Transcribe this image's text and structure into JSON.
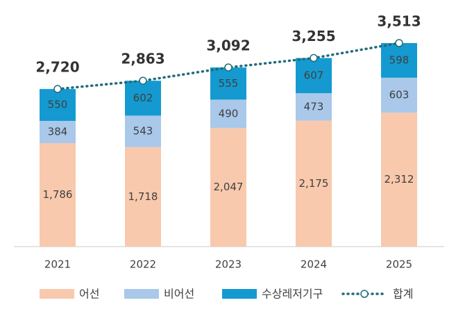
{
  "chart_data": {
    "type": "bar",
    "stacked": true,
    "categories": [
      "2021",
      "2022",
      "2023",
      "2024",
      "2025"
    ],
    "series": [
      {
        "name": "어선",
        "color": "#f8c9ad",
        "values": [
          1786,
          1718,
          2047,
          2175,
          2312
        ],
        "value_labels": [
          "1,786",
          "1,718",
          "2,047",
          "2,175",
          "2,312"
        ]
      },
      {
        "name": "비어선",
        "color": "#a9c8ea",
        "values": [
          384,
          543,
          490,
          473,
          603
        ]
      },
      {
        "name": "수상레저기구",
        "color": "#149ad0",
        "values": [
          550,
          602,
          555,
          607,
          598
        ]
      }
    ],
    "total": {
      "name": "합계",
      "color": "#1f6b7a",
      "values": [
        2720,
        2863,
        3092,
        3255,
        3513
      ],
      "value_labels": [
        "2,720",
        "2,863",
        "3,092",
        "3,255",
        "3,513"
      ]
    }
  }
}
